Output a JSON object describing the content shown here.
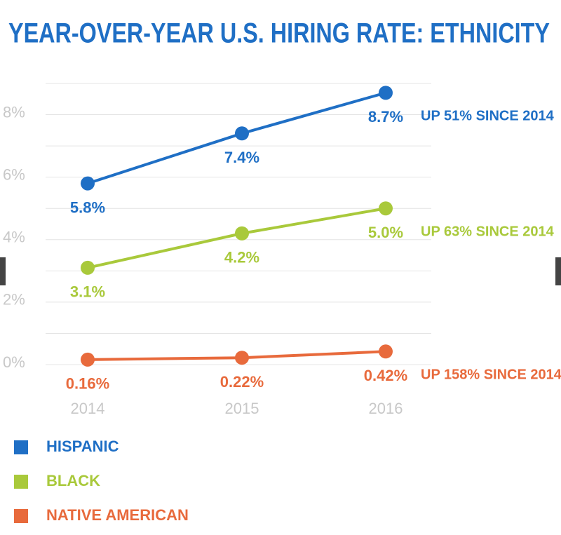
{
  "chart_data": {
    "type": "line",
    "title": "YEAR-OVER-YEAR U.S. HIRING RATE: ETHNICITY",
    "categories": [
      "2014",
      "2015",
      "2016"
    ],
    "series": [
      {
        "name": "HISPANIC",
        "color": "#1f6fc5",
        "values": [
          5.8,
          7.4,
          8.7
        ],
        "value_labels": [
          "5.8%",
          "7.4%",
          "8.7%"
        ],
        "annotation": "UP 51% SINCE 2014"
      },
      {
        "name": "BLACK",
        "color": "#a9c93b",
        "values": [
          3.1,
          4.2,
          5.0
        ],
        "value_labels": [
          "3.1%",
          "4.2%",
          "5.0%"
        ],
        "annotation": "UP 63% SINCE 2014"
      },
      {
        "name": "NATIVE AMERICAN",
        "color": "#e86a3c",
        "values": [
          0.16,
          0.22,
          0.42
        ],
        "value_labels": [
          "0.16%",
          "0.22%",
          "0.42%"
        ],
        "annotation": "UP 158% SINCE 2014"
      }
    ],
    "ylim": [
      0,
      9
    ],
    "yticks": [
      {
        "value": 0,
        "label": "0%"
      },
      {
        "value": 2,
        "label": "2%"
      },
      {
        "value": 4,
        "label": "4%"
      },
      {
        "value": 6,
        "label": "6%"
      },
      {
        "value": 8,
        "label": "8%"
      }
    ],
    "y_minor_ticks": [
      1,
      3,
      5,
      7,
      9
    ],
    "grid": true,
    "legend": "bottom"
  }
}
